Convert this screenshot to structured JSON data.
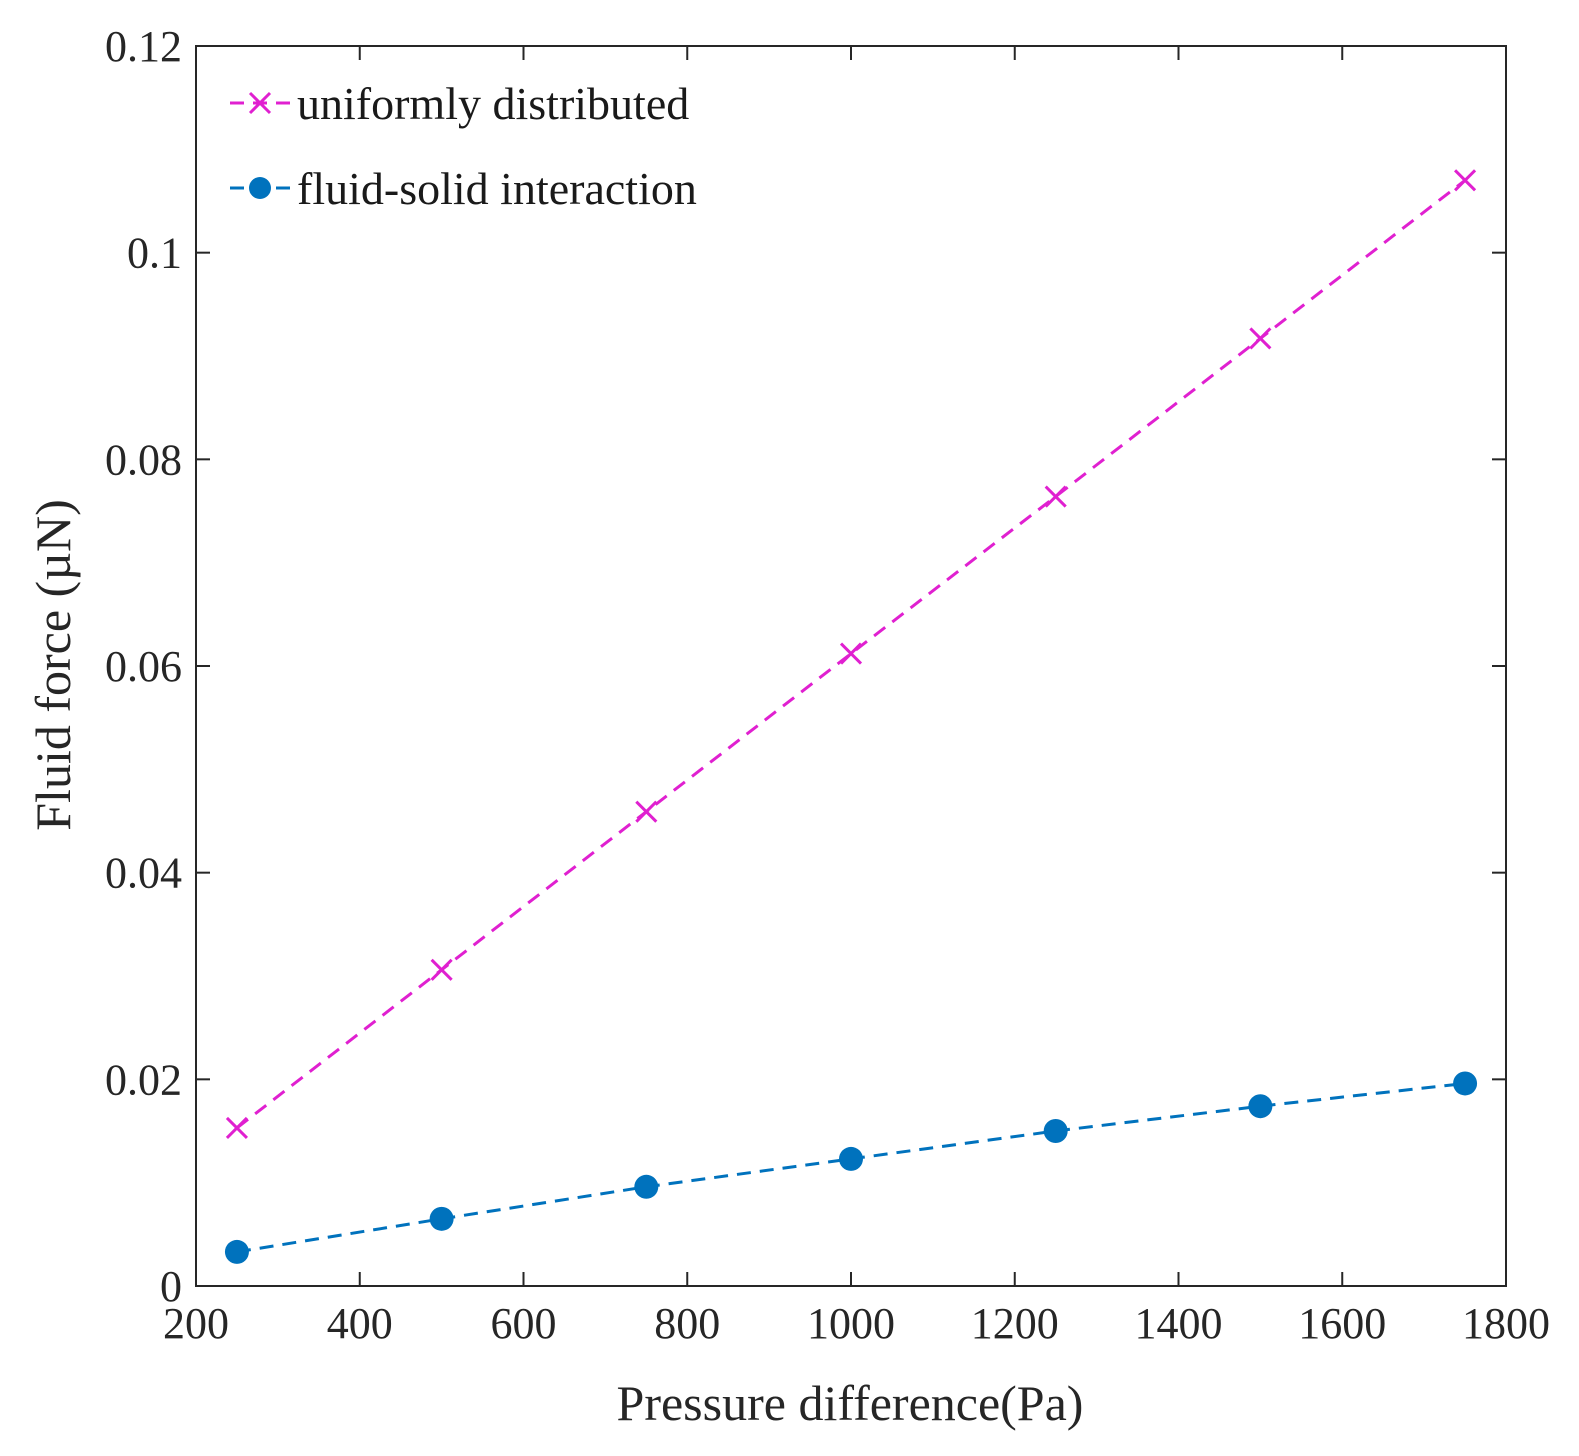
{
  "chart_data": {
    "type": "line",
    "title": "",
    "xlabel": "Pressure difference(Pa)",
    "ylabel": "Fluid force (µN)",
    "xlim": [
      200,
      1800
    ],
    "ylim": [
      0,
      0.12
    ],
    "xticks": [
      200,
      400,
      600,
      800,
      1000,
      1200,
      1400,
      1600,
      1800
    ],
    "xtick_labels": [
      "200",
      "400",
      "600",
      "800",
      "1000",
      "1200",
      "1400",
      "1600",
      "1800"
    ],
    "yticks": [
      0,
      0.02,
      0.04,
      0.06,
      0.08,
      0.1,
      0.12
    ],
    "ytick_labels": [
      "0",
      "0.02",
      "0.04",
      "0.06",
      "0.08",
      "0.1",
      "0.12"
    ],
    "grid": false,
    "legend_position": "top-left",
    "x": [
      250,
      500,
      750,
      1000,
      1250,
      1500,
      1750
    ],
    "series": [
      {
        "name": "uniformly distributed",
        "values": [
          0.0153,
          0.0306,
          0.0459,
          0.0612,
          0.0764,
          0.0917,
          0.107
        ],
        "color": "#e020d0",
        "marker": "x",
        "line_style": "dashed"
      },
      {
        "name": "fluid-solid interaction",
        "values": [
          0.0033,
          0.0065,
          0.0096,
          0.0123,
          0.015,
          0.0174,
          0.0196
        ],
        "color": "#0072bd",
        "marker": "circle",
        "line_style": "dashed"
      }
    ]
  }
}
